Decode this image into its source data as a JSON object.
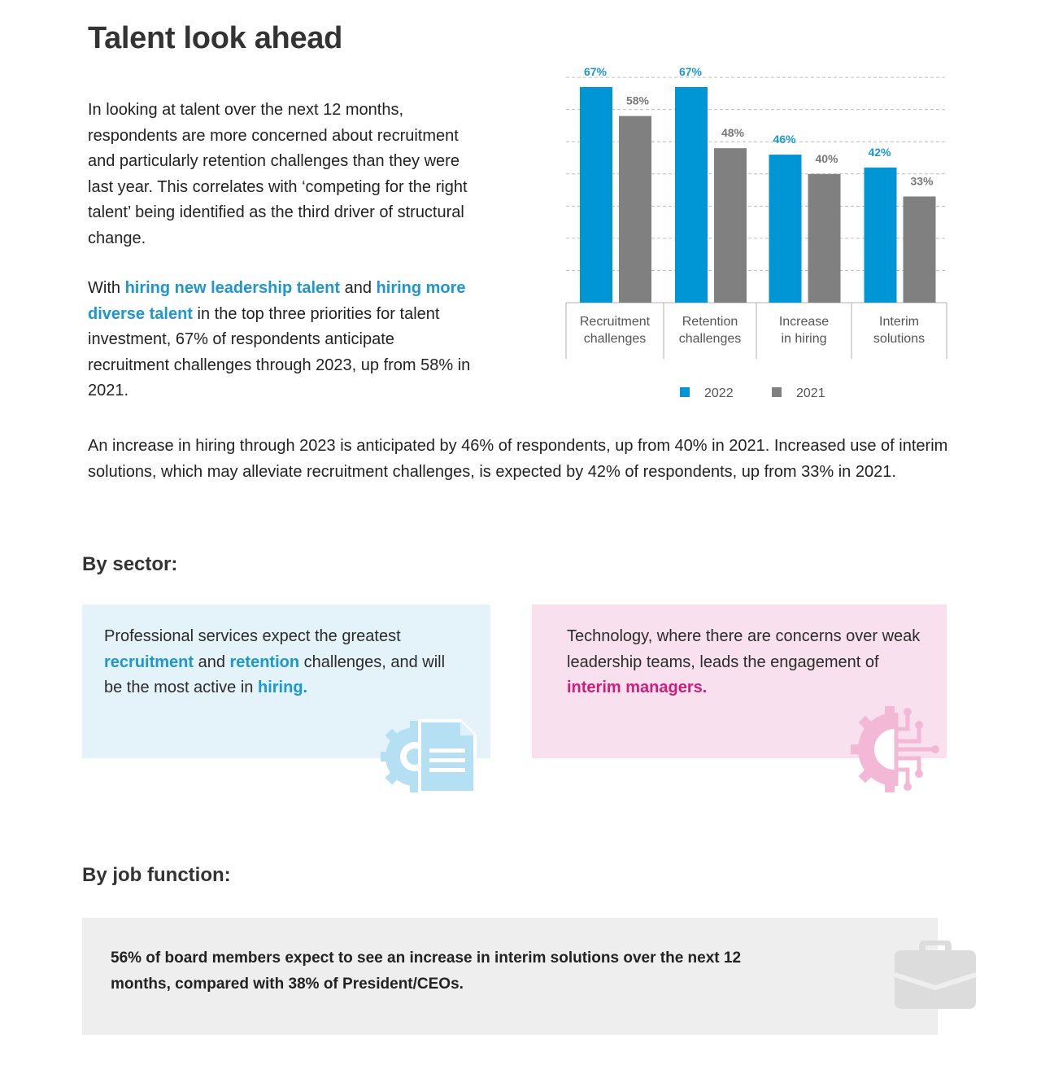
{
  "title": "Talent look ahead",
  "intro": {
    "p1": "In looking at talent over the next 12 months, respondents are more concerned about recruitment and particularly retention challenges than they were last year. This correlates with ‘competing for the right talent’ being identified as the third driver of structural change.",
    "p2_a": "With ",
    "p2_hl1": "hiring new leadership talent",
    "p2_b": " and ",
    "p2_hl2": "hiring more diverse talent",
    "p2_c": " in the top three priorities for talent investment, 67% of respondents anticipate recruitment challenges through 2023, up from 58% in 2021.",
    "p3": "An increase in hiring through 2023 is anticipated by 46% of respondents, up from 40% in 2021. Increased use of interim solutions, which may alleviate recruitment challenges, is expected by 42% of respondents, up from 33% in 2021."
  },
  "sector": {
    "heading": "By sector:",
    "blue_card": {
      "t1": "Professional services expect the greatest ",
      "hl1": "recruitment",
      "t2": " and ",
      "hl2": "retention",
      "t3": " challenges, and will be the most active in ",
      "hl3": "hiring."
    },
    "pink_card": {
      "t1": "Technology, where there are concerns over weak leadership teams, leads the engagement of ",
      "hl1": "interim managers."
    }
  },
  "job_function": {
    "heading": "By job function:",
    "text": "56% of board members expect to see an increase in interim solutions over the next 12 months, compared with 38% of President/CEOs."
  },
  "icons": {
    "blue_card": "gear-document-icon",
    "pink_card": "gear-circuit-icon",
    "job_box": "briefcase-icon"
  },
  "colors": {
    "series_2022": "#0096d6",
    "series_2021": "#808080",
    "accent_blue": "#1a97d4",
    "accent_pink": "#cc1f7a"
  },
  "chart_data": {
    "type": "bar",
    "categories": [
      [
        "Recruitment",
        "challenges"
      ],
      [
        "Retention",
        "challenges"
      ],
      [
        "Increase",
        "in hiring"
      ],
      [
        "Interim",
        "solutions"
      ]
    ],
    "series": [
      {
        "name": "2022",
        "values": [
          67,
          67,
          46,
          42
        ],
        "labels": [
          "67%",
          "67%",
          "46%",
          "42%"
        ],
        "color": "#0096d6"
      },
      {
        "name": "2021",
        "values": [
          58,
          48,
          40,
          33
        ],
        "labels": [
          "58%",
          "48%",
          "40%",
          "33%"
        ],
        "color": "#808080"
      }
    ],
    "ylim": [
      0,
      70
    ],
    "gridlines": "dashed",
    "legend": "bottom"
  }
}
